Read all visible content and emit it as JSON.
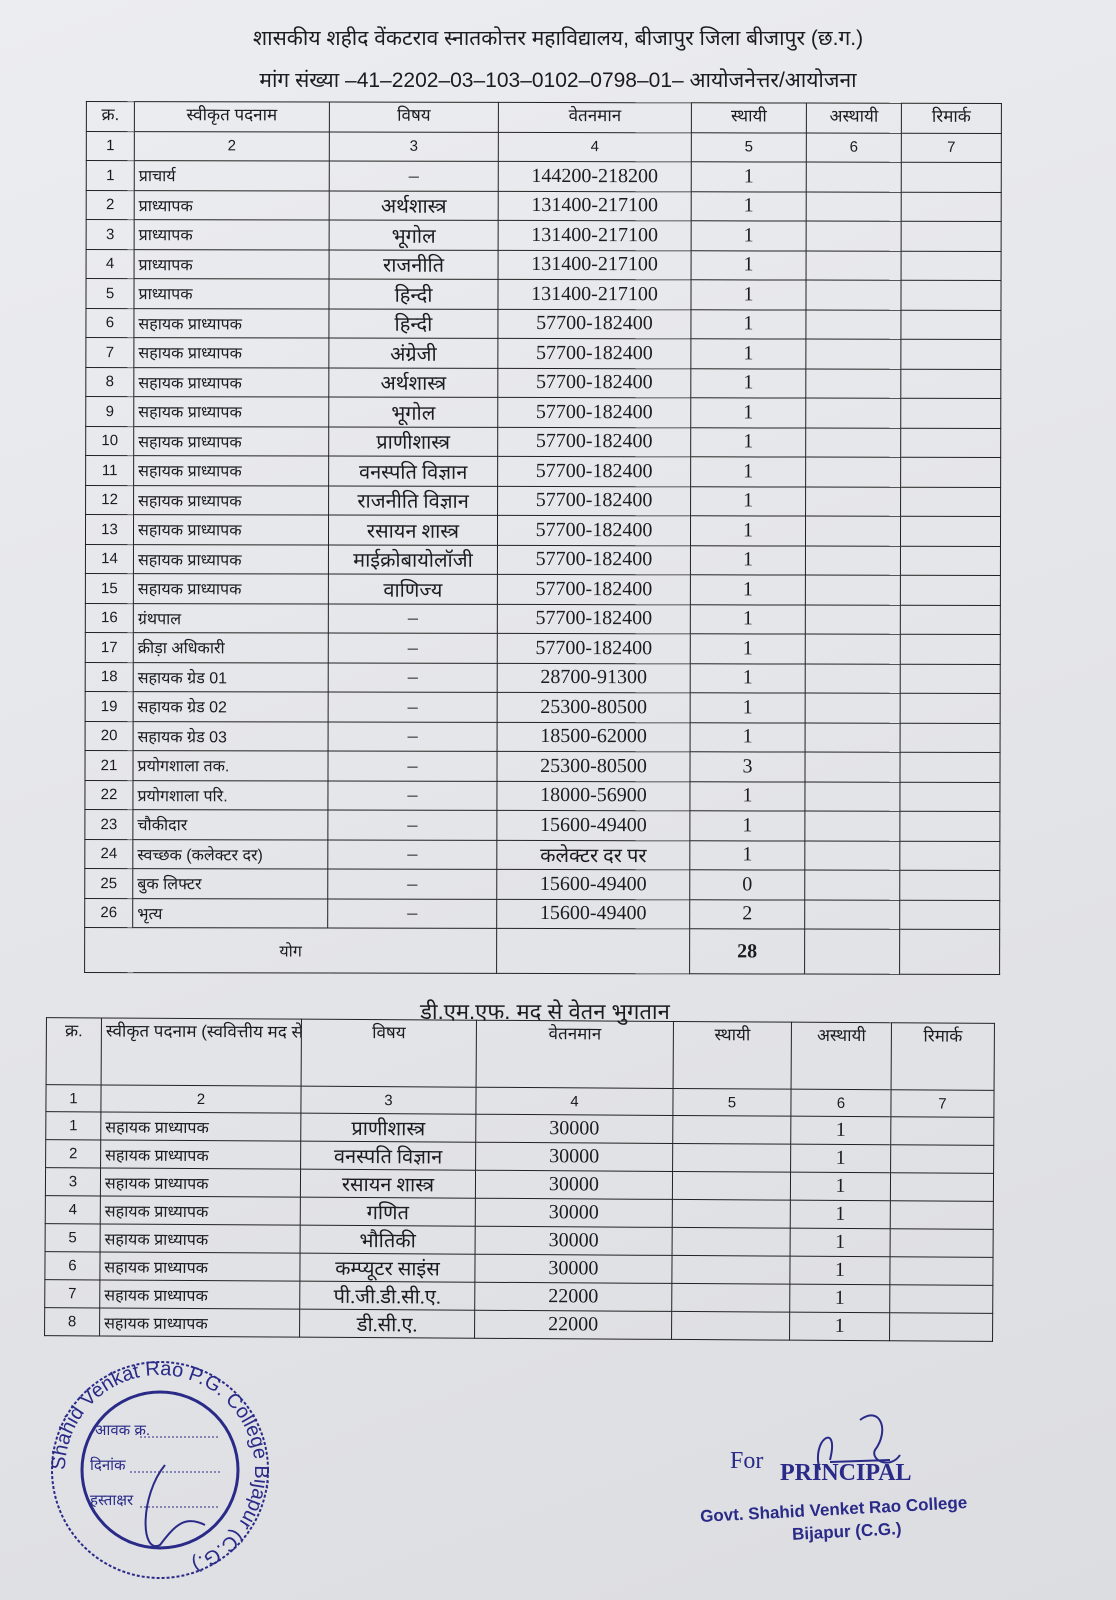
{
  "header": {
    "title": "शासकीय शहीद वेंकटराव स्नातकोत्तर महाविद्यालय, बीजापुर जिला बीजापुर (छ.ग.)",
    "subtitle": "मांग संख्या –41–2202–03–103–0102–0798–01– आयोजनेत्तर/आयोजना"
  },
  "table1": {
    "headers": [
      "क्र.",
      "स्वीकृत पदनाम",
      "विषय",
      "वेतनमान",
      "स्थायी",
      "अस्थायी",
      "रिमार्क"
    ],
    "col_numbers": [
      "1",
      "2",
      "3",
      "4",
      "5",
      "6",
      "7"
    ],
    "rows": [
      [
        "1",
        "प्राचार्य",
        "–",
        "144200-218200",
        "1",
        "",
        ""
      ],
      [
        "2",
        "प्राध्यापक",
        "अर्थशास्त्र",
        "131400-217100",
        "1",
        "",
        ""
      ],
      [
        "3",
        "प्राध्यापक",
        "भूगोल",
        "131400-217100",
        "1",
        "",
        ""
      ],
      [
        "4",
        "प्राध्यापक",
        "राजनीति",
        "131400-217100",
        "1",
        "",
        ""
      ],
      [
        "5",
        "प्राध्यापक",
        "हिन्दी",
        "131400-217100",
        "1",
        "",
        ""
      ],
      [
        "6",
        "सहायक प्राध्यापक",
        "हिन्दी",
        "57700-182400",
        "1",
        "",
        ""
      ],
      [
        "7",
        "सहायक प्राध्यापक",
        "अंग्रेजी",
        "57700-182400",
        "1",
        "",
        ""
      ],
      [
        "8",
        "सहायक प्राध्यापक",
        "अर्थशास्त्र",
        "57700-182400",
        "1",
        "",
        ""
      ],
      [
        "9",
        "सहायक प्राध्यापक",
        "भूगोल",
        "57700-182400",
        "1",
        "",
        ""
      ],
      [
        "10",
        "सहायक प्राध्यापक",
        "प्राणीशास्त्र",
        "57700-182400",
        "1",
        "",
        ""
      ],
      [
        "11",
        "सहायक प्राध्यापक",
        "वनस्पति विज्ञान",
        "57700-182400",
        "1",
        "",
        ""
      ],
      [
        "12",
        "सहायक प्राध्यापक",
        "राजनीति विज्ञान",
        "57700-182400",
        "1",
        "",
        ""
      ],
      [
        "13",
        "सहायक प्राध्यापक",
        "रसायन शास्त्र",
        "57700-182400",
        "1",
        "",
        ""
      ],
      [
        "14",
        "सहायक प्राध्यापक",
        "माईक्रोबायोलॉजी",
        "57700-182400",
        "1",
        "",
        ""
      ],
      [
        "15",
        "सहायक प्राध्यापक",
        "वाणिज्य",
        "57700-182400",
        "1",
        "",
        ""
      ],
      [
        "16",
        "ग्रंथपाल",
        "–",
        "57700-182400",
        "1",
        "",
        ""
      ],
      [
        "17",
        "क्रीड़ा अधिकारी",
        "–",
        "57700-182400",
        "1",
        "",
        ""
      ],
      [
        "18",
        "सहायक ग्रेड 01",
        "–",
        "28700-91300",
        "1",
        "",
        ""
      ],
      [
        "19",
        "सहायक ग्रेड 02",
        "–",
        "25300-80500",
        "1",
        "",
        ""
      ],
      [
        "20",
        "सहायक ग्रेड 03",
        "–",
        "18500-62000",
        "1",
        "",
        ""
      ],
      [
        "21",
        "प्रयोगशाला तक.",
        "–",
        "25300-80500",
        "3",
        "",
        ""
      ],
      [
        "22",
        "प्रयोगशाला परि.",
        "–",
        "18000-56900",
        "1",
        "",
        ""
      ],
      [
        "23",
        "चौकीदार",
        "–",
        "15600-49400",
        "1",
        "",
        ""
      ],
      [
        "24",
        "स्वच्छक (कलेक्टर दर)",
        "–",
        "कलेक्टर दर पर",
        "1",
        "",
        ""
      ],
      [
        "25",
        "बुक लिफ्टर",
        "–",
        "15600-49400",
        "0",
        "",
        ""
      ],
      [
        "26",
        "भृत्य",
        "–",
        "15600-49400",
        "2",
        "",
        ""
      ]
    ],
    "total_label": "योग",
    "total_value": "28"
  },
  "table2": {
    "title": "डी.एम.एफ. मद से वेतन भुगतान",
    "headers": [
      "क्र.",
      "स्वीकृत पदनाम (स्ववित्तीय मद से)",
      "विषय",
      "वेतनमान",
      "स्थायी",
      "अस्थायी",
      "रिमार्क"
    ],
    "col_numbers": [
      "1",
      "2",
      "3",
      "4",
      "5",
      "6",
      "7"
    ],
    "rows": [
      [
        "1",
        "सहायक प्राध्यापक",
        "प्राणीशास्त्र",
        "30000",
        "",
        "1",
        ""
      ],
      [
        "2",
        "सहायक प्राध्यापक",
        "वनस्पति विज्ञान",
        "30000",
        "",
        "1",
        ""
      ],
      [
        "3",
        "सहायक प्राध्यापक",
        "रसायन शास्त्र",
        "30000",
        "",
        "1",
        ""
      ],
      [
        "4",
        "सहायक प्राध्यापक",
        "गणित",
        "30000",
        "",
        "1",
        ""
      ],
      [
        "5",
        "सहायक प्राध्यापक",
        "भौतिकी",
        "30000",
        "",
        "1",
        ""
      ],
      [
        "6",
        "सहायक प्राध्यापक",
        "कम्प्यूटर साइंस",
        "30000",
        "",
        "1",
        ""
      ],
      [
        "7",
        "सहायक प्राध्यापक",
        "पी.जी.डी.सी.ए.",
        "22000",
        "",
        "1",
        ""
      ],
      [
        "8",
        "सहायक प्राध्यापक",
        "डी.सी.ए.",
        "22000",
        "",
        "1",
        ""
      ]
    ]
  },
  "stamp": {
    "ring_text": "Shahid Venkat Rao P.G. College Bijapur (C.G.)",
    "fields": [
      "आवक क्र.",
      "दिनांक",
      "हस्ताक्षर"
    ]
  },
  "signature": {
    "for": "For",
    "title": "PRINCIPAL",
    "line1": "Govt. Shahid Venket Rao College",
    "line2": "Bijapur (C.G.)"
  },
  "colors": {
    "ink": "#1c1c1f",
    "stamp_ink": "#2a2a88",
    "paper": "#e6e7ea"
  }
}
